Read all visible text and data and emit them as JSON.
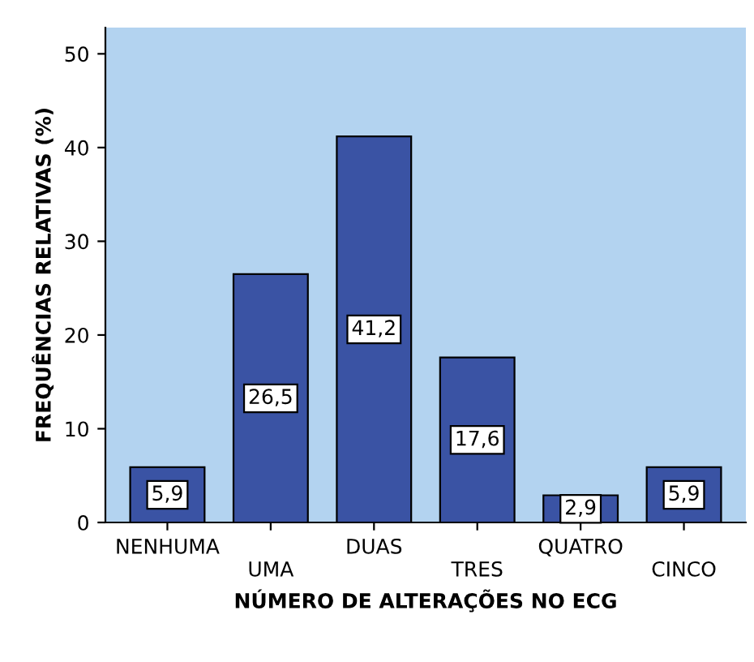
{
  "chart_data": {
    "type": "bar",
    "xlabel": "NÚMERO DE ALTERAÇÕES NO ECG",
    "ylabel": "FREQUÊNCIAS RELATIVAS (%)",
    "categories": [
      "NENHUMA",
      "UMA",
      "DUAS",
      "TRES",
      "QUATRO",
      "CINCO"
    ],
    "values": [
      5.9,
      26.5,
      41.2,
      17.6,
      2.9,
      5.9
    ],
    "value_labels": [
      "5,9",
      "26,5",
      "41,2",
      "17,6",
      "2,9",
      "5,9"
    ],
    "color": "#3a53a4",
    "ylim": [
      0,
      52.8
    ],
    "yticks": [
      0,
      10,
      20,
      30,
      40,
      50
    ],
    "grid": false,
    "legend": false
  }
}
